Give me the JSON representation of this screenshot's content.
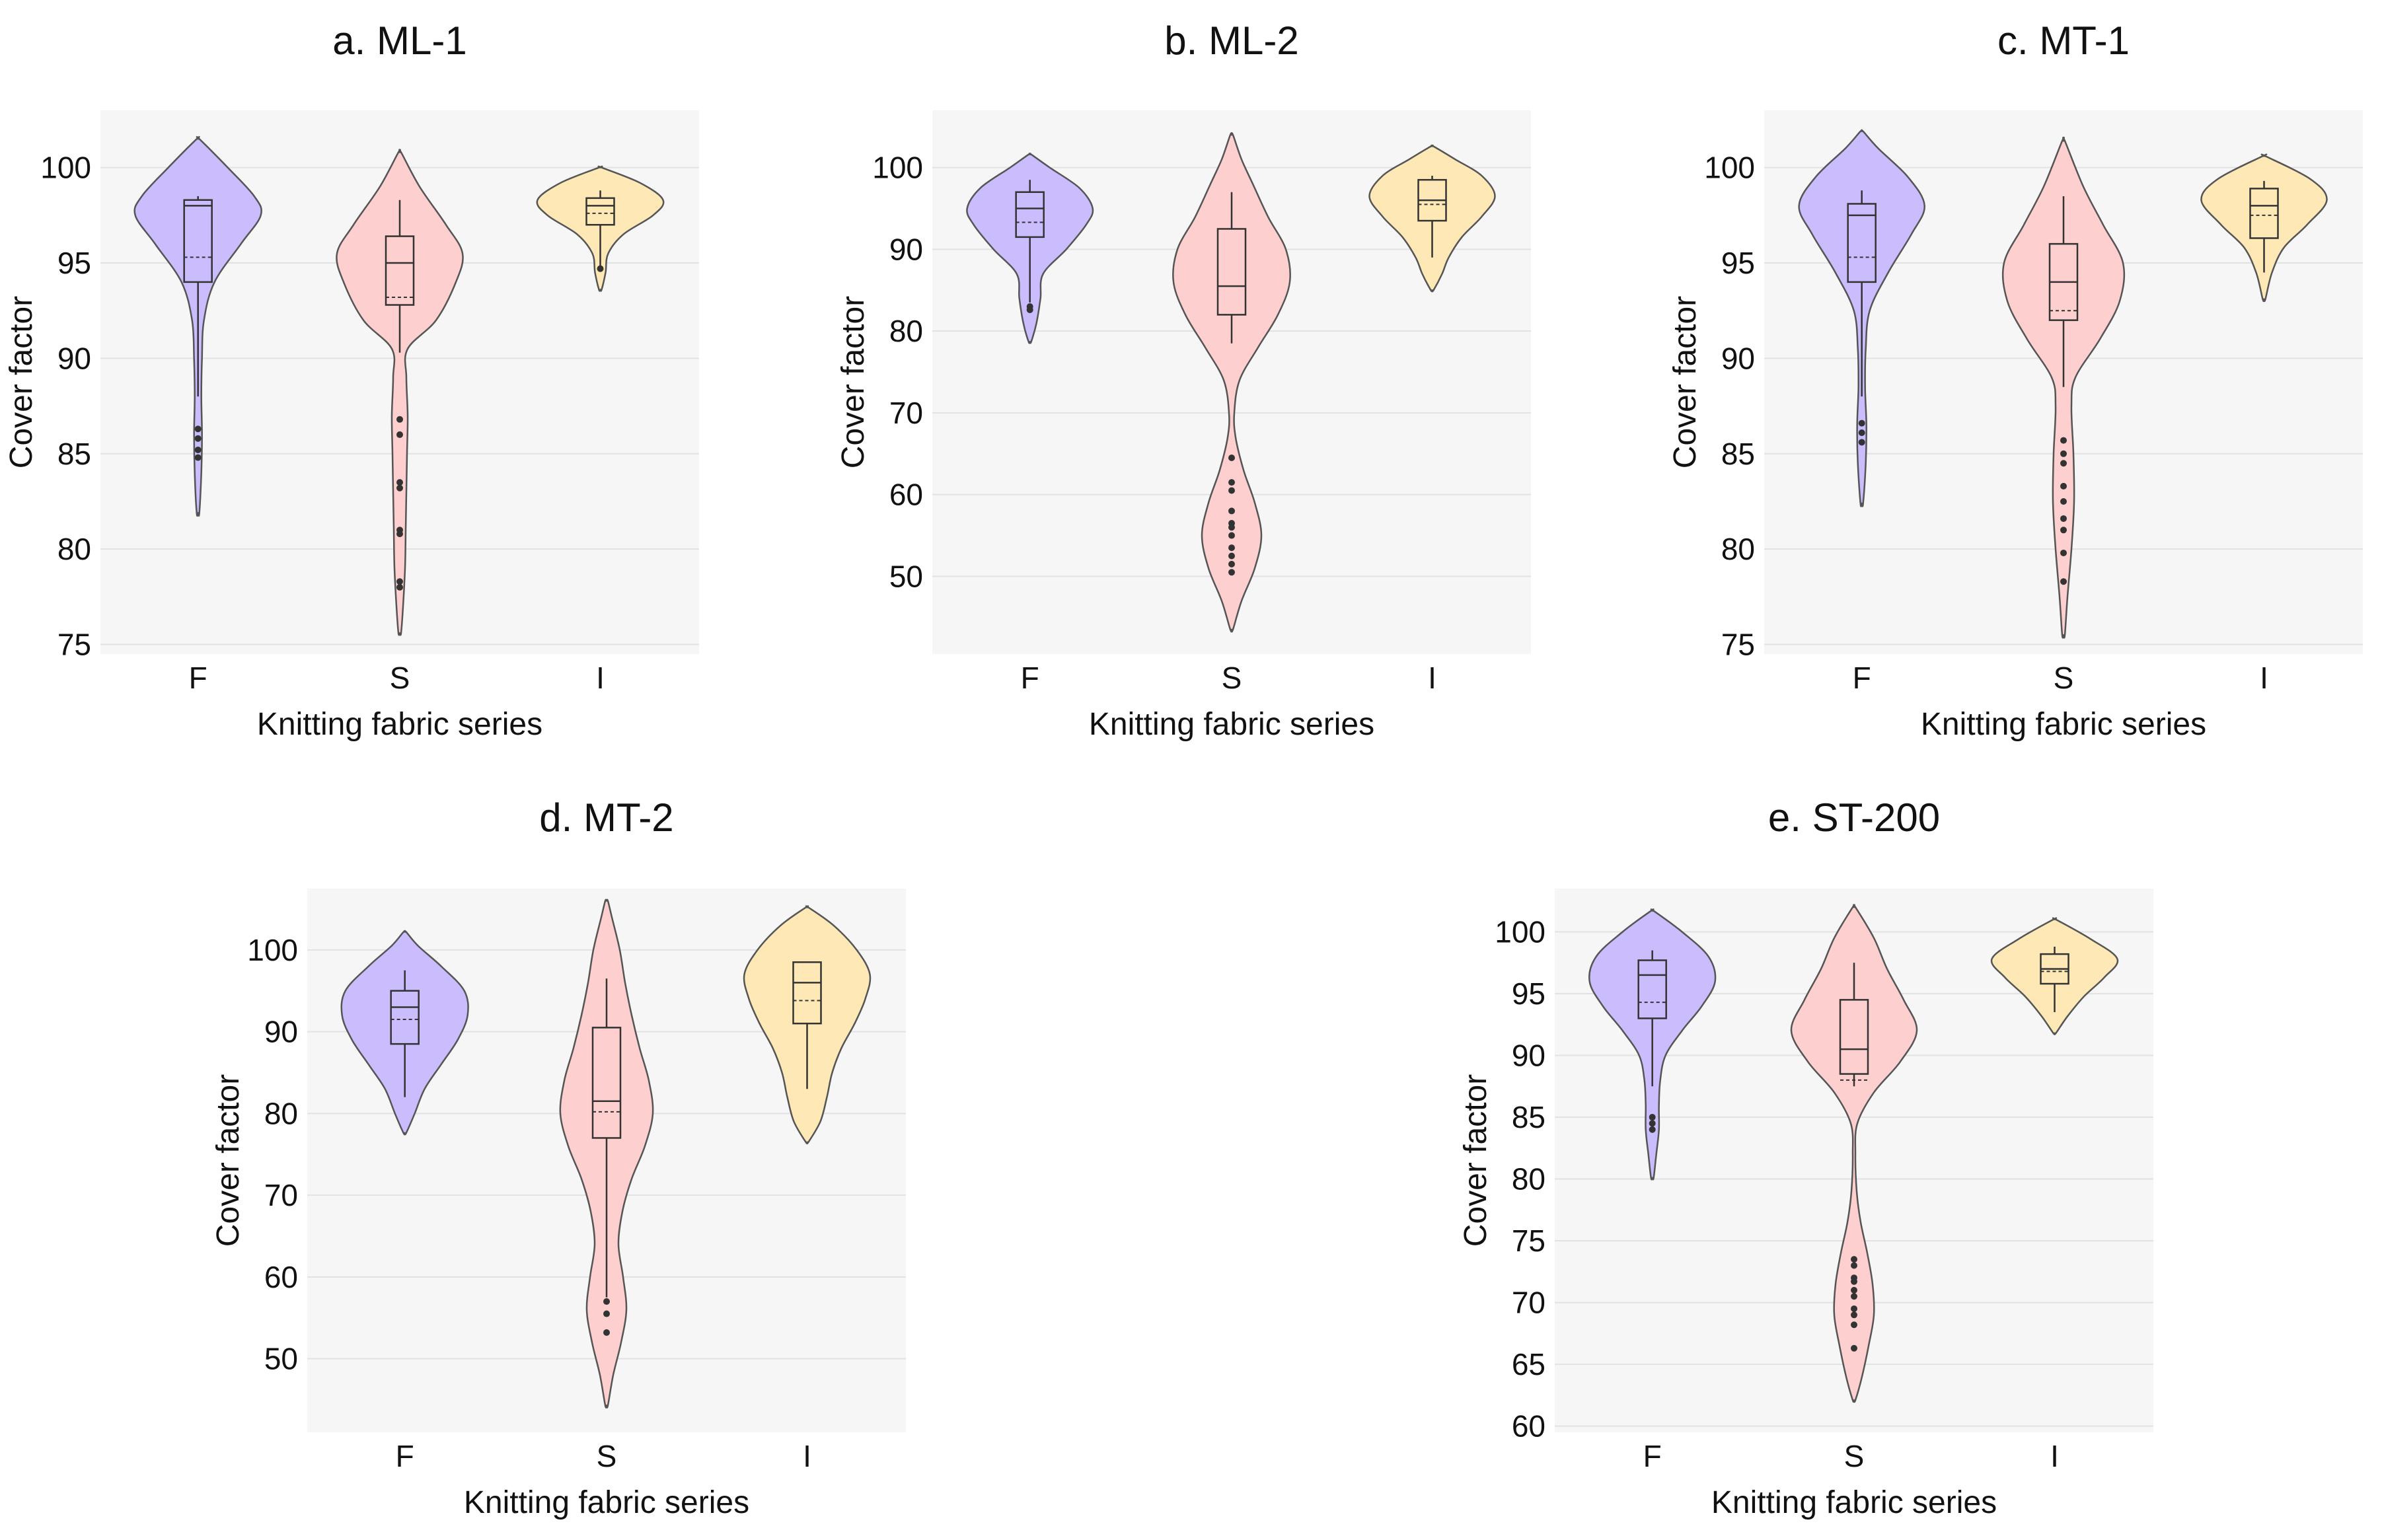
{
  "figure": {
    "colors": {
      "F": "#cbbcfd",
      "S": "#fdcfcf",
      "I": "#fde8b6",
      "outline": "#555555",
      "plot_bg": "#f6f6f6",
      "grid": "#e2e2e2"
    }
  },
  "chart_data": [
    {
      "type": "violin",
      "title": "a. ML-1",
      "xlabel": "Knitting fabric series",
      "ylabel": "Cover factor",
      "categories": [
        "F",
        "S",
        "I"
      ],
      "yticks": [
        75,
        80,
        85,
        90,
        95,
        100
      ],
      "ylim": [
        74.5,
        103
      ],
      "series": [
        {
          "name": "F",
          "min": 81.9,
          "max": 101.5,
          "q1": 94,
          "median": 98,
          "q3": 98.3,
          "mean": 95.3,
          "whisker_low": 88,
          "whisker_high": 98.5,
          "outliers": [
            86.3,
            85.8,
            85.2,
            84.8
          ],
          "density": [
            [
              81.9,
              0.02
            ],
            [
              84,
              0.05
            ],
            [
              86,
              0.06
            ],
            [
              88,
              0.05
            ],
            [
              90,
              0.06
            ],
            [
              92,
              0.09
            ],
            [
              94,
              0.25
            ],
            [
              96,
              0.65
            ],
            [
              97.5,
              0.95
            ],
            [
              98.5,
              0.85
            ],
            [
              100,
              0.45
            ],
            [
              101.5,
              0.02
            ]
          ]
        },
        {
          "name": "S",
          "min": 75.6,
          "max": 100.8,
          "q1": 92.8,
          "median": 95,
          "q3": 96.4,
          "mean": 93.2,
          "whisker_low": 90.3,
          "whisker_high": 98.3,
          "outliers": [
            86.8,
            86,
            83.5,
            83.2,
            81,
            80.8,
            78.3,
            78
          ],
          "density": [
            [
              75.6,
              0.02
            ],
            [
              77,
              0.05
            ],
            [
              79,
              0.08
            ],
            [
              81,
              0.09
            ],
            [
              83,
              0.1
            ],
            [
              85,
              0.11
            ],
            [
              87,
              0.12
            ],
            [
              89,
              0.1
            ],
            [
              90.5,
              0.12
            ],
            [
              92,
              0.55
            ],
            [
              94,
              0.85
            ],
            [
              95.5,
              0.95
            ],
            [
              97,
              0.7
            ],
            [
              99,
              0.3
            ],
            [
              100.8,
              0.02
            ]
          ]
        },
        {
          "name": "I",
          "min": 93.6,
          "max": 100,
          "q1": 97,
          "median": 98,
          "q3": 98.4,
          "mean": 97.6,
          "whisker_low": 94.7,
          "whisker_high": 98.8,
          "outliers": [
            94.7
          ],
          "density": [
            [
              93.6,
              0.02
            ],
            [
              94.5,
              0.08
            ],
            [
              95.5,
              0.12
            ],
            [
              96.5,
              0.35
            ],
            [
              97.5,
              0.8
            ],
            [
              98.3,
              0.95
            ],
            [
              99.2,
              0.6
            ],
            [
              100,
              0.02
            ]
          ]
        }
      ]
    },
    {
      "type": "violin",
      "title": "b. ML-2",
      "xlabel": "Knitting fabric series",
      "ylabel": "Cover factor",
      "categories": [
        "F",
        "S",
        "I"
      ],
      "yticks": [
        50,
        60,
        70,
        80,
        90,
        100
      ],
      "ylim": [
        40.5,
        107
      ],
      "series": [
        {
          "name": "F",
          "min": 78.7,
          "max": 101.6,
          "q1": 91.5,
          "median": 95,
          "q3": 97,
          "mean": 93.3,
          "whisker_low": 83.5,
          "whisker_high": 98.5,
          "outliers": [
            83,
            82.6
          ],
          "density": [
            [
              78.7,
              0.02
            ],
            [
              81,
              0.1
            ],
            [
              84,
              0.16
            ],
            [
              87,
              0.2
            ],
            [
              90,
              0.55
            ],
            [
              93,
              0.85
            ],
            [
              95,
              0.95
            ],
            [
              97.5,
              0.75
            ],
            [
              100,
              0.3
            ],
            [
              101.6,
              0.02
            ]
          ]
        },
        {
          "name": "S",
          "min": 43.5,
          "max": 104,
          "q1": 82,
          "median": 85.5,
          "q3": 92.5,
          "mean": 82,
          "whisker_low": 78.5,
          "whisker_high": 97,
          "outliers": [
            64.5,
            61.5,
            60.5,
            58,
            56.5,
            56,
            55,
            53.5,
            52.5,
            51.5,
            50.5
          ],
          "density": [
            [
              43.5,
              0.02
            ],
            [
              47,
              0.15
            ],
            [
              51,
              0.35
            ],
            [
              55,
              0.45
            ],
            [
              59,
              0.35
            ],
            [
              63,
              0.18
            ],
            [
              67,
              0.06
            ],
            [
              70,
              0.04
            ],
            [
              74,
              0.12
            ],
            [
              78,
              0.4
            ],
            [
              82,
              0.7
            ],
            [
              86,
              0.88
            ],
            [
              90,
              0.82
            ],
            [
              94,
              0.55
            ],
            [
              98,
              0.32
            ],
            [
              101,
              0.15
            ],
            [
              104,
              0.02
            ]
          ]
        },
        {
          "name": "I",
          "min": 85,
          "max": 102.6,
          "q1": 93.5,
          "median": 96,
          "q3": 98.5,
          "mean": 95.5,
          "whisker_low": 89,
          "whisker_high": 99,
          "outliers": [],
          "density": [
            [
              85,
              0.02
            ],
            [
              87,
              0.15
            ],
            [
              89,
              0.25
            ],
            [
              91.5,
              0.45
            ],
            [
              94,
              0.75
            ],
            [
              96.5,
              0.95
            ],
            [
              99,
              0.75
            ],
            [
              101,
              0.35
            ],
            [
              102.6,
              0.02
            ]
          ]
        }
      ]
    },
    {
      "type": "violin",
      "title": "c. MT-1",
      "xlabel": "Knitting fabric series",
      "ylabel": "Cover factor",
      "categories": [
        "F",
        "S",
        "I"
      ],
      "yticks": [
        75,
        80,
        85,
        90,
        95,
        100
      ],
      "ylim": [
        74.5,
        103
      ],
      "series": [
        {
          "name": "F",
          "min": 82.4,
          "max": 101.9,
          "q1": 94,
          "median": 97.5,
          "q3": 98.1,
          "mean": 95.3,
          "whisker_low": 88,
          "whisker_high": 98.8,
          "outliers": [
            86.6,
            86.1,
            85.6
          ],
          "density": [
            [
              82.4,
              0.02
            ],
            [
              84.5,
              0.06
            ],
            [
              86.5,
              0.07
            ],
            [
              88.5,
              0.05
            ],
            [
              90.5,
              0.06
            ],
            [
              92.5,
              0.12
            ],
            [
              94.5,
              0.4
            ],
            [
              96.5,
              0.75
            ],
            [
              98,
              0.95
            ],
            [
              99.5,
              0.7
            ],
            [
              101,
              0.25
            ],
            [
              101.9,
              0.02
            ]
          ]
        },
        {
          "name": "S",
          "min": 75.5,
          "max": 101.4,
          "q1": 92,
          "median": 94,
          "q3": 96,
          "mean": 92.5,
          "whisker_low": 88.5,
          "whisker_high": 98.5,
          "outliers": [
            85.7,
            85,
            84.5,
            83.3,
            82.5,
            81.6,
            81,
            79.8,
            78.3
          ],
          "density": [
            [
              75.5,
              0.02
            ],
            [
              77.5,
              0.06
            ],
            [
              80,
              0.12
            ],
            [
              82.5,
              0.16
            ],
            [
              85,
              0.15
            ],
            [
              87.5,
              0.12
            ],
            [
              89,
              0.18
            ],
            [
              91,
              0.55
            ],
            [
              93,
              0.85
            ],
            [
              95,
              0.9
            ],
            [
              97,
              0.6
            ],
            [
              99,
              0.3
            ],
            [
              101.4,
              0.02
            ]
          ]
        },
        {
          "name": "I",
          "min": 93.1,
          "max": 100.6,
          "q1": 96.3,
          "median": 98,
          "q3": 98.9,
          "mean": 97.5,
          "whisker_low": 94.5,
          "whisker_high": 99.3,
          "outliers": [],
          "density": [
            [
              93.1,
              0.02
            ],
            [
              94.5,
              0.12
            ],
            [
              95.8,
              0.3
            ],
            [
              97,
              0.65
            ],
            [
              98.3,
              0.95
            ],
            [
              99.4,
              0.7
            ],
            [
              100.6,
              0.02
            ]
          ]
        }
      ]
    },
    {
      "type": "violin",
      "title": "d. MT-2",
      "xlabel": "Knitting fabric series",
      "ylabel": "Cover factor",
      "categories": [
        "F",
        "S",
        "I"
      ],
      "yticks": [
        50,
        60,
        70,
        80,
        90,
        100
      ],
      "ylim": [
        41,
        107.5
      ],
      "series": [
        {
          "name": "F",
          "min": 77.6,
          "max": 102.2,
          "q1": 88.5,
          "median": 93,
          "q3": 95,
          "mean": 91.5,
          "whisker_low": 82,
          "whisker_high": 97.5,
          "outliers": [],
          "density": [
            [
              77.6,
              0.02
            ],
            [
              80,
              0.15
            ],
            [
              83,
              0.3
            ],
            [
              86,
              0.55
            ],
            [
              89,
              0.8
            ],
            [
              92,
              0.95
            ],
            [
              95,
              0.9
            ],
            [
              98,
              0.55
            ],
            [
              100.5,
              0.2
            ],
            [
              102.2,
              0.02
            ]
          ]
        },
        {
          "name": "S",
          "min": 44.3,
          "max": 106,
          "q1": 77,
          "median": 81.5,
          "q3": 90.5,
          "mean": 80.2,
          "whisker_low": 57.5,
          "whisker_high": 96.5,
          "outliers": [
            57,
            55.5,
            53.2
          ],
          "density": [
            [
              44.3,
              0.02
            ],
            [
              48,
              0.1
            ],
            [
              52,
              0.22
            ],
            [
              56,
              0.3
            ],
            [
              60,
              0.25
            ],
            [
              64,
              0.18
            ],
            [
              68,
              0.24
            ],
            [
              72,
              0.38
            ],
            [
              76,
              0.58
            ],
            [
              80,
              0.7
            ],
            [
              84,
              0.64
            ],
            [
              88,
              0.5
            ],
            [
              92,
              0.38
            ],
            [
              96,
              0.28
            ],
            [
              100,
              0.2
            ],
            [
              104,
              0.08
            ],
            [
              106,
              0.02
            ]
          ]
        },
        {
          "name": "I",
          "min": 76.5,
          "max": 105.2,
          "q1": 91,
          "median": 96,
          "q3": 98.5,
          "mean": 93.8,
          "whisker_low": 83,
          "whisker_high": 98.5,
          "outliers": [],
          "density": [
            [
              76.5,
              0.02
            ],
            [
              79,
              0.2
            ],
            [
              82,
              0.3
            ],
            [
              85,
              0.38
            ],
            [
              88,
              0.52
            ],
            [
              91,
              0.72
            ],
            [
              94,
              0.88
            ],
            [
              97,
              0.95
            ],
            [
              100,
              0.75
            ],
            [
              103,
              0.4
            ],
            [
              105.2,
              0.02
            ]
          ]
        }
      ]
    },
    {
      "type": "violin",
      "title": "e. ST-200",
      "xlabel": "Knitting fabric series",
      "ylabel": "Cover factor",
      "categories": [
        "F",
        "S",
        "I"
      ],
      "yticks": [
        60,
        65,
        70,
        75,
        80,
        85,
        90,
        95,
        100
      ],
      "ylim": [
        59.5,
        103.5
      ],
      "series": [
        {
          "name": "F",
          "min": 80.1,
          "max": 101.7,
          "q1": 93,
          "median": 96.5,
          "q3": 97.7,
          "mean": 94.3,
          "whisker_low": 87.5,
          "whisker_high": 98.5,
          "outliers": [
            85,
            84.5,
            84
          ],
          "density": [
            [
              80.1,
              0.02
            ],
            [
              82,
              0.06
            ],
            [
              84,
              0.1
            ],
            [
              86,
              0.1
            ],
            [
              88,
              0.12
            ],
            [
              90,
              0.2
            ],
            [
              92,
              0.45
            ],
            [
              94,
              0.75
            ],
            [
              96,
              0.95
            ],
            [
              98,
              0.85
            ],
            [
              100,
              0.45
            ],
            [
              101.7,
              0.02
            ]
          ]
        },
        {
          "name": "S",
          "min": 62.1,
          "max": 102,
          "q1": 88.5,
          "median": 90.5,
          "q3": 94.5,
          "mean": 88,
          "whisker_low": 87.5,
          "whisker_high": 97.5,
          "outliers": [
            73.5,
            73,
            72,
            71.7,
            71,
            70.5,
            69.5,
            69,
            68.2,
            66.3
          ],
          "density": [
            [
              62.1,
              0.02
            ],
            [
              64,
              0.12
            ],
            [
              66.5,
              0.22
            ],
            [
              69,
              0.3
            ],
            [
              71.5,
              0.28
            ],
            [
              74,
              0.2
            ],
            [
              76.5,
              0.1
            ],
            [
              79,
              0.04
            ],
            [
              82,
              0.02
            ],
            [
              84.5,
              0.05
            ],
            [
              87,
              0.3
            ],
            [
              89.5,
              0.7
            ],
            [
              92,
              0.95
            ],
            [
              94.5,
              0.75
            ],
            [
              97,
              0.5
            ],
            [
              99.5,
              0.3
            ],
            [
              102,
              0.02
            ]
          ]
        },
        {
          "name": "I",
          "min": 91.8,
          "max": 101,
          "q1": 95.8,
          "median": 97,
          "q3": 98.2,
          "mean": 96.8,
          "whisker_low": 93.5,
          "whisker_high": 98.8,
          "outliers": [],
          "density": [
            [
              91.8,
              0.02
            ],
            [
              93.2,
              0.2
            ],
            [
              94.8,
              0.45
            ],
            [
              96.3,
              0.75
            ],
            [
              97.8,
              0.95
            ],
            [
              99.4,
              0.55
            ],
            [
              101,
              0.02
            ]
          ]
        }
      ]
    }
  ]
}
